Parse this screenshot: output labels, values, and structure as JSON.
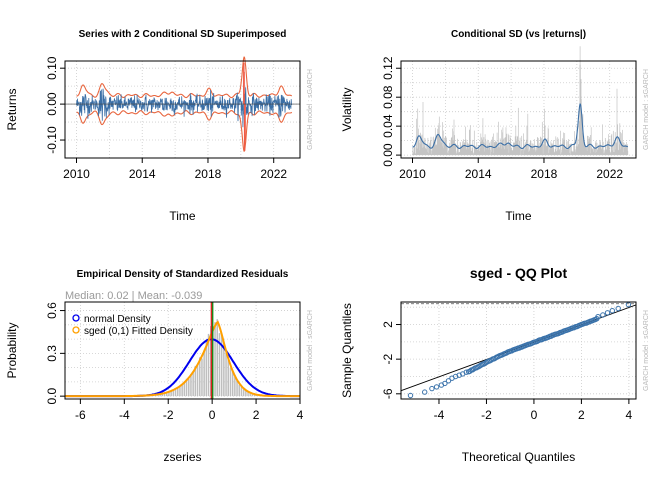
{
  "colors": {
    "returns": "#ef5a45",
    "band": "#e8663f",
    "sd_line": "#3b6fa6",
    "abs_returns": "#c4c4c4",
    "hist_bar": "#bebebe",
    "normal": "#0000ee",
    "sged": "#ffa000",
    "median_line": "#1a8a1a",
    "mean_line": "#dd1111",
    "qq_points": "#3b73ab",
    "grid": "#cccccc"
  },
  "chart_data": [
    {
      "type": "line",
      "title": "Series with 2 Conditional SD Superimposed",
      "xlabel": "Time",
      "ylabel": "Returns",
      "xlim": [
        2009.3,
        2023.6
      ],
      "ylim": [
        -0.15,
        0.12
      ],
      "xticks": [
        2010,
        2014,
        2018,
        2022
      ],
      "yticks": [
        -0.1,
        0.0,
        0.1
      ],
      "ytick_labels": [
        "-0.10",
        "0.00",
        "0.10"
      ],
      "grid": true,
      "side_label": "GARCH model : sGARCH",
      "series_shape": {
        "x_range": [
          2010.0,
          2023.1
        ],
        "baseline_sd": 0.012,
        "episodes": [
          {
            "x": 2010.4,
            "sd": 0.024
          },
          {
            "x": 2011.65,
            "sd": 0.026
          },
          {
            "x": 2015.65,
            "sd": 0.018
          },
          {
            "x": 2018.1,
            "sd": 0.018
          },
          {
            "x": 2020.2,
            "sd": 0.065
          },
          {
            "x": 2022.4,
            "sd": 0.022
          }
        ],
        "extremes": [
          {
            "x": 2020.18,
            "y": 0.115
          },
          {
            "x": 2020.23,
            "y": -0.13
          },
          {
            "x": 2020.2,
            "y": 0.09
          },
          {
            "x": 2020.26,
            "y": -0.1
          }
        ]
      }
    },
    {
      "type": "line",
      "title": "Conditional SD (vs |returns|)",
      "xlabel": "Time",
      "ylabel": "Volatility",
      "xlim": [
        2009.3,
        2023.6
      ],
      "ylim": [
        -0.004,
        0.13
      ],
      "xticks": [
        2010,
        2014,
        2018,
        2022
      ],
      "yticks": [
        0.0,
        0.04,
        0.08,
        0.12
      ],
      "ytick_labels": [
        "0.00",
        "0.04",
        "0.08",
        "0.12"
      ],
      "grid": true,
      "side_label": "GARCH model : sGARCH",
      "series_shape": {
        "x_range": [
          2010.0,
          2023.1
        ],
        "baseline_sd": 0.012,
        "episodes": [
          {
            "x": 2010.4,
            "sd": 0.024
          },
          {
            "x": 2011.65,
            "sd": 0.026
          },
          {
            "x": 2015.65,
            "sd": 0.018
          },
          {
            "x": 2018.1,
            "sd": 0.018
          },
          {
            "x": 2020.2,
            "sd": 0.07
          },
          {
            "x": 2022.4,
            "sd": 0.022
          }
        ],
        "extremes": [
          {
            "x": 2020.2,
            "y": 0.125
          },
          {
            "x": 2020.24,
            "y": 0.105
          }
        ]
      }
    },
    {
      "type": "bar",
      "title": "Empirical Density of Standardized Residuals",
      "xlabel": "zseries",
      "ylabel": "Probability",
      "note": "Median:  0.02 | Mean:  -0.039",
      "xlim": [
        -6.7,
        4.0
      ],
      "ylim": [
        -0.02,
        0.66
      ],
      "xticks": [
        -6,
        -4,
        -2,
        0,
        2,
        4
      ],
      "yticks": [
        0.0,
        0.3,
        0.6
      ],
      "ytick_labels": [
        "0.0",
        "0.3",
        "0.6"
      ],
      "grid": true,
      "median": 0.02,
      "mean": -0.039,
      "bin_width": 0.1,
      "hist_range": [
        -4.4,
        2.6
      ],
      "series": [
        {
          "name": "normal Density",
          "kind": "curve",
          "mean": -0.039,
          "sd": 1.0
        },
        {
          "name": "sged (0,1) Fitted Density",
          "kind": "curve",
          "peak_x": 0.25,
          "peak_y": 0.52,
          "left_scale": 0.95,
          "right_scale": 0.6
        }
      ],
      "legend_position": "top-left",
      "side_label": "GARCH model : sGARCH"
    },
    {
      "type": "scatter",
      "title": "sged - QQ Plot",
      "xlabel": "Theoretical Quantiles",
      "ylabel": "Sample Quantiles",
      "xlim": [
        -5.6,
        4.3
      ],
      "ylim": [
        -6.6,
        4.6
      ],
      "xticks": [
        -4,
        -2,
        0,
        2,
        4
      ],
      "yticks": [
        -6,
        -2,
        2
      ],
      "ytick_labels": [
        "-6",
        "-2",
        "2"
      ],
      "grid": true,
      "reference_line": {
        "intercept": -0.04,
        "slope": 1.0
      },
      "top_hline": 4.4,
      "side_label": "GARCH model : sGARCH",
      "points_description": {
        "count": 120,
        "x_range": [
          -5.2,
          3.98
        ],
        "tail_low": [
          [
            -5.2,
            -6.2
          ],
          [
            -4.6,
            -5.8
          ],
          [
            -4.3,
            -5.4
          ],
          [
            -4.1,
            -5.2
          ],
          [
            -3.9,
            -5.0
          ],
          [
            -3.75,
            -4.8
          ],
          [
            -3.6,
            -4.5
          ],
          [
            -3.45,
            -4.2
          ],
          [
            -3.3,
            -4.0
          ],
          [
            -3.15,
            -3.85
          ],
          [
            -3.0,
            -3.7
          ],
          [
            -2.85,
            -3.5
          ]
        ],
        "tail_high": [
          [
            2.7,
            2.9
          ],
          [
            2.9,
            3.1
          ],
          [
            3.1,
            3.35
          ],
          [
            3.3,
            3.6
          ],
          [
            3.55,
            3.85
          ],
          [
            3.98,
            4.3
          ]
        ]
      }
    }
  ]
}
